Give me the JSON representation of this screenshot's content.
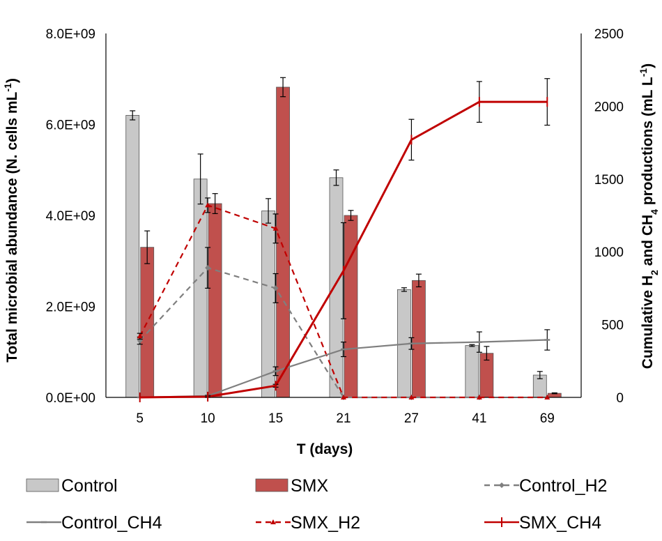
{
  "chart_data": {
    "type": "bar+line",
    "categories": [
      "5",
      "10",
      "15",
      "21",
      "27",
      "41",
      "69"
    ],
    "xlabel": "T (days)",
    "ylabel_left": {
      "main": "Total microbial abundance (N. cells mL",
      "sup": "-1",
      "end": ")"
    },
    "ylabel_right": {
      "a": "Cumulative H",
      "b": "2",
      "c": " and CH",
      "d": "4",
      "e": " productions (mL L",
      "f": "-1",
      "g": ")"
    },
    "ylim_left": [
      0,
      8000000000
    ],
    "ylim_right": [
      0,
      2500
    ],
    "yticks_left": [
      "0.0E+00",
      "2.0E+09",
      "4.0E+09",
      "6.0E+09",
      "8.0E+09"
    ],
    "yticks_right": [
      "0",
      "500",
      "1000",
      "1500",
      "2000",
      "2500"
    ],
    "colors": {
      "control": "#c8c8c8",
      "smx": "#c0504d",
      "control_line": "#7f7f7f",
      "smx_line": "#c00000",
      "axis": "#000000",
      "bar_edge": "#555555"
    },
    "bar_series": [
      {
        "name": "Control",
        "key": "control",
        "values": [
          6200000000,
          4800000000,
          4100000000,
          4830000000,
          2370000000,
          1140000000,
          490000000
        ],
        "errors": [
          100000000,
          550000000,
          270000000,
          170000000,
          40000000,
          20000000,
          80000000
        ]
      },
      {
        "name": "SMX",
        "key": "smx",
        "values": [
          3300000000,
          4260000000,
          6820000000,
          4000000000,
          2570000000,
          970000000,
          90000000
        ],
        "errors": [
          360000000,
          220000000,
          210000000,
          110000000,
          140000000,
          150000000,
          10000000
        ]
      }
    ],
    "line_series": [
      {
        "name": "Control_H2",
        "key": "control_line",
        "dash": "8,6",
        "marker": "diamond",
        "values": [
          390,
          890,
          750,
          0,
          0,
          0,
          null
        ],
        "errors": [
          25,
          140,
          100,
          0,
          0,
          0,
          null
        ]
      },
      {
        "name": "SMX_H2",
        "key": "smx_line",
        "dash": "8,6",
        "marker": "triangle",
        "values": [
          420,
          1320,
          1160,
          0,
          0,
          0,
          0
        ],
        "errors": [
          20,
          50,
          100,
          0,
          0,
          0,
          0
        ]
      },
      {
        "name": "Control_CH4",
        "key": "control_line",
        "dash": "",
        "marker": "dash",
        "values": [
          0,
          10,
          180,
          330,
          370,
          380,
          395
        ],
        "errors": [
          0,
          5,
          30,
          50,
          40,
          70,
          70
        ]
      },
      {
        "name": "SMX_CH4",
        "key": "smx_line",
        "dash": "",
        "marker": "plus",
        "values": [
          0,
          5,
          80,
          870,
          1770,
          2030,
          2030
        ],
        "errors": [
          0,
          5,
          10,
          330,
          140,
          140,
          160
        ]
      }
    ],
    "legend": [
      {
        "label": "Control",
        "kind": "bar",
        "key": "control"
      },
      {
        "label": "SMX",
        "kind": "bar",
        "key": "smx"
      },
      {
        "label": "Control_H2",
        "kind": "line",
        "key": "control_line",
        "dash": "8,6",
        "marker": "diamond"
      },
      {
        "label": "Control_CH4",
        "kind": "line",
        "key": "control_line",
        "dash": "",
        "marker": "dash"
      },
      {
        "label": "SMX_H2",
        "kind": "line",
        "key": "smx_line",
        "dash": "8,6",
        "marker": "triangle"
      },
      {
        "label": "SMX_CH4",
        "kind": "line",
        "key": "smx_line",
        "dash": "",
        "marker": "plus"
      }
    ]
  }
}
